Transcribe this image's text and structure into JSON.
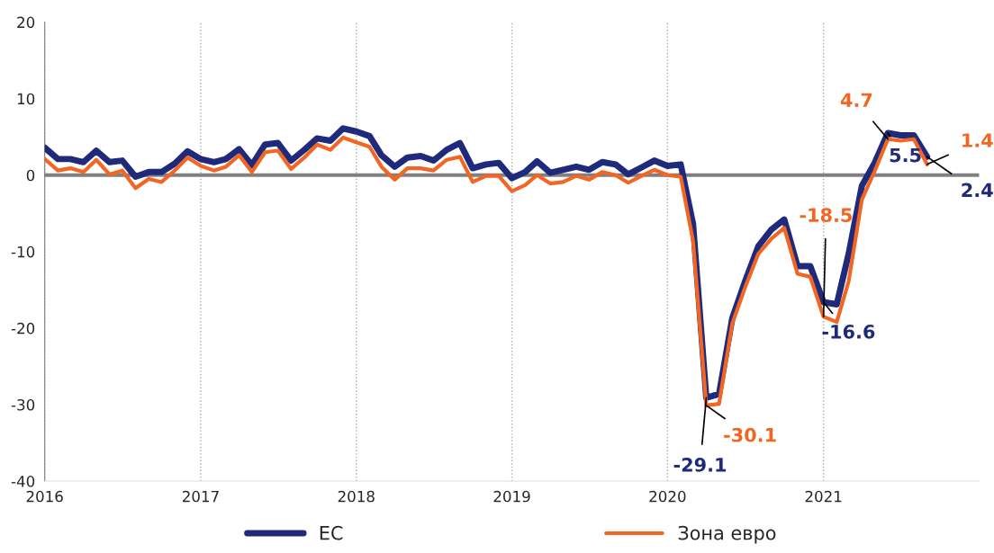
{
  "chart_data": {
    "type": "line",
    "x": [
      "2016-01",
      "2016-02",
      "2016-03",
      "2016-04",
      "2016-05",
      "2016-06",
      "2016-07",
      "2016-08",
      "2016-09",
      "2016-10",
      "2016-11",
      "2016-12",
      "2017-01",
      "2017-02",
      "2017-03",
      "2017-04",
      "2017-05",
      "2017-06",
      "2017-07",
      "2017-08",
      "2017-09",
      "2017-10",
      "2017-11",
      "2017-12",
      "2018-01",
      "2018-02",
      "2018-03",
      "2018-04",
      "2018-05",
      "2018-06",
      "2018-07",
      "2018-08",
      "2018-09",
      "2018-10",
      "2018-11",
      "2018-12",
      "2019-01",
      "2019-02",
      "2019-03",
      "2019-04",
      "2019-05",
      "2019-06",
      "2019-07",
      "2019-08",
      "2019-09",
      "2019-10",
      "2019-11",
      "2019-12",
      "2020-01",
      "2020-02",
      "2020-03",
      "2020-04",
      "2020-05",
      "2020-06",
      "2020-07",
      "2020-08",
      "2020-09",
      "2020-10",
      "2020-11",
      "2020-12",
      "2021-01",
      "2021-02",
      "2021-03",
      "2021-04",
      "2021-05",
      "2021-06",
      "2021-07",
      "2021-08",
      "2021-09"
    ],
    "series": [
      {
        "name": "ЕС",
        "color": "#1f2a7a",
        "values": [
          3.6,
          2.1,
          2.1,
          1.7,
          3.2,
          1.7,
          1.9,
          -0.2,
          0.4,
          0.4,
          1.5,
          3.1,
          2.1,
          1.7,
          2.1,
          3.4,
          1.3,
          4.0,
          4.2,
          1.9,
          3.3,
          4.8,
          4.5,
          6.1,
          5.7,
          5.1,
          2.6,
          1.1,
          2.3,
          2.5,
          1.9,
          3.3,
          4.2,
          0.9,
          1.4,
          1.6,
          -0.4,
          0.4,
          1.8,
          0.3,
          0.7,
          1.1,
          0.7,
          1.7,
          1.4,
          0.1,
          1.0,
          1.9,
          1.2,
          1.4,
          -6.4,
          -29.1,
          -28.6,
          -18.7,
          -13.9,
          -9.3,
          -7.1,
          -5.8,
          -11.9,
          -11.9,
          -16.6,
          -16.9,
          -10.3,
          -1.4,
          1.6,
          5.5,
          5.2,
          5.2,
          2.4
        ]
      },
      {
        "name": "Зона евро",
        "color": "#f26522",
        "values": [
          2.1,
          0.6,
          0.9,
          0.4,
          2.0,
          0.1,
          0.6,
          -1.7,
          -0.5,
          -0.9,
          0.6,
          2.3,
          1.2,
          0.6,
          1.1,
          2.6,
          0.4,
          3.0,
          3.2,
          0.8,
          2.3,
          4.0,
          3.3,
          4.9,
          4.3,
          3.7,
          1.1,
          -0.6,
          0.9,
          0.9,
          0.6,
          2.0,
          2.4,
          -0.9,
          -0.1,
          -0.1,
          -2.1,
          -1.3,
          0.0,
          -1.1,
          -0.9,
          -0.1,
          -0.6,
          0.4,
          0.0,
          -1.0,
          -0.1,
          0.7,
          0.0,
          -0.2,
          -8.6,
          -30.1,
          -29.9,
          -19.4,
          -14.7,
          -10.3,
          -8.3,
          -6.9,
          -12.9,
          -13.3,
          -18.5,
          -19.2,
          -13.9,
          -3.2,
          0.5,
          4.7,
          4.5,
          4.7,
          1.4
        ]
      }
    ],
    "annotations": [
      {
        "text": "-29.1",
        "x": "2020-04",
        "y": -29.1
      },
      {
        "text": "-30.1",
        "x": "2020-04",
        "y": -30.1
      },
      {
        "text": "-18.5",
        "x": "2021-01",
        "y": -18.5
      },
      {
        "text": "-16.6",
        "x": "2021-01",
        "y": -16.6
      },
      {
        "text": "4.7",
        "x": "2021-06",
        "y": 4.7
      },
      {
        "text": "5.5",
        "x": "2021-06",
        "y": 5.5
      },
      {
        "text": "1.4",
        "x": "2021-09",
        "y": 1.4
      },
      {
        "text": "2.4",
        "x": "2021-09",
        "y": 2.4
      }
    ],
    "ref_lines": [
      {
        "axis": "y",
        "value": 0,
        "color": "#808080"
      }
    ],
    "xlim": [
      "2016-01",
      "2022-01"
    ],
    "xticks": [
      {
        "value": "2016-01",
        "label": "2016"
      },
      {
        "value": "2017-01",
        "label": "2017"
      },
      {
        "value": "2018-01",
        "label": "2018"
      },
      {
        "value": "2019-01",
        "label": "2019"
      },
      {
        "value": "2020-01",
        "label": "2020"
      },
      {
        "value": "2021-01",
        "label": "2021"
      }
    ],
    "ylim": [
      -40,
      20
    ],
    "yticks": [
      -40,
      -30,
      -20,
      -10,
      0,
      10,
      20
    ],
    "grid": "x",
    "legend": "bottom",
    "marker": "none",
    "line_style": "solid"
  }
}
